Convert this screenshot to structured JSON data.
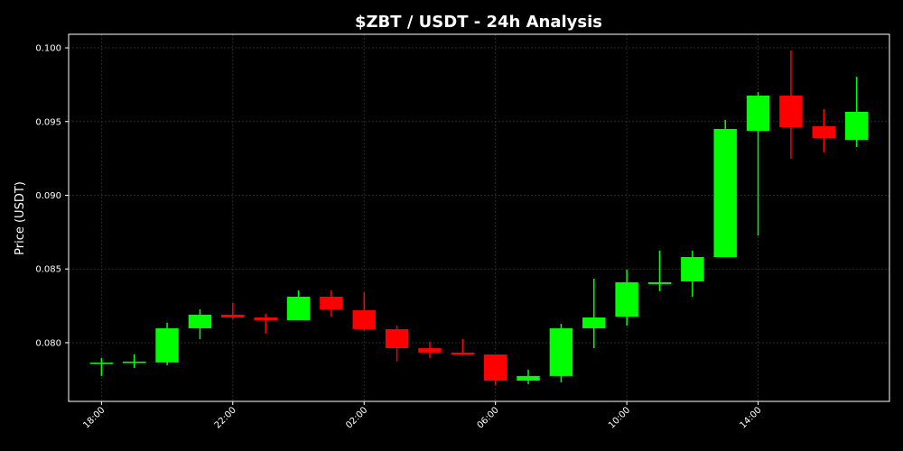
{
  "chart_data": {
    "type": "candlestick",
    "title": "$ZBT / USDT - 24h Analysis",
    "y_label": "Price (USDT)",
    "categories": [
      "18:00",
      null,
      null,
      null,
      "22:00",
      null,
      null,
      null,
      "02:00",
      null,
      null,
      null,
      "06:00",
      null,
      null,
      null,
      "10:00",
      null,
      null,
      null,
      "14:00",
      null,
      null,
      null
    ],
    "open": [
      0.0786,
      0.07862,
      0.07866,
      0.08098,
      0.0819,
      0.08171,
      0.08153,
      0.08312,
      0.0822,
      0.08092,
      0.07963,
      0.07933,
      0.0792,
      0.07743,
      0.07774,
      0.08098,
      0.08177,
      0.08398,
      0.08416,
      0.08581,
      0.09437,
      0.09676,
      0.09468,
      0.09376
    ],
    "high": [
      0.07896,
      0.07921,
      0.08135,
      0.08226,
      0.08269,
      0.08196,
      0.08355,
      0.08355,
      0.08343,
      0.08116,
      0.08006,
      0.08024,
      0.0792,
      0.07817,
      0.08128,
      0.08434,
      0.08495,
      0.08624,
      0.08624,
      0.09511,
      0.097,
      0.09982,
      0.09584,
      0.09804
    ],
    "low": [
      0.07774,
      0.07829,
      0.07847,
      0.08024,
      0.08159,
      0.08061,
      0.08153,
      0.08177,
      0.0808,
      0.07872,
      0.07896,
      0.07914,
      0.07713,
      0.07719,
      0.07731,
      0.07963,
      0.08116,
      0.08349,
      0.08312,
      0.08581,
      0.08728,
      0.09248,
      0.09291,
      0.09327
    ],
    "close": [
      0.07865,
      0.07872,
      0.08098,
      0.0819,
      0.08171,
      0.08153,
      0.08312,
      0.08226,
      0.08092,
      0.07963,
      0.07933,
      0.0792,
      0.07743,
      0.07774,
      0.08098,
      0.08171,
      0.0841,
      0.0841,
      0.08581,
      0.0945,
      0.09676,
      0.09462,
      0.09388,
      0.09566
    ],
    "up_color": "#00ff00",
    "down_color": "#ff0000",
    "ylim": [
      0.07602,
      0.10092
    ],
    "yticks": [
      {
        "value": 0.08,
        "label": "0.080"
      },
      {
        "value": 0.085,
        "label": "0.085"
      },
      {
        "value": 0.09,
        "label": "0.090"
      },
      0.095,
      {
        "value": 0.1,
        "label": "0.100"
      }
    ],
    "grid": true
  }
}
